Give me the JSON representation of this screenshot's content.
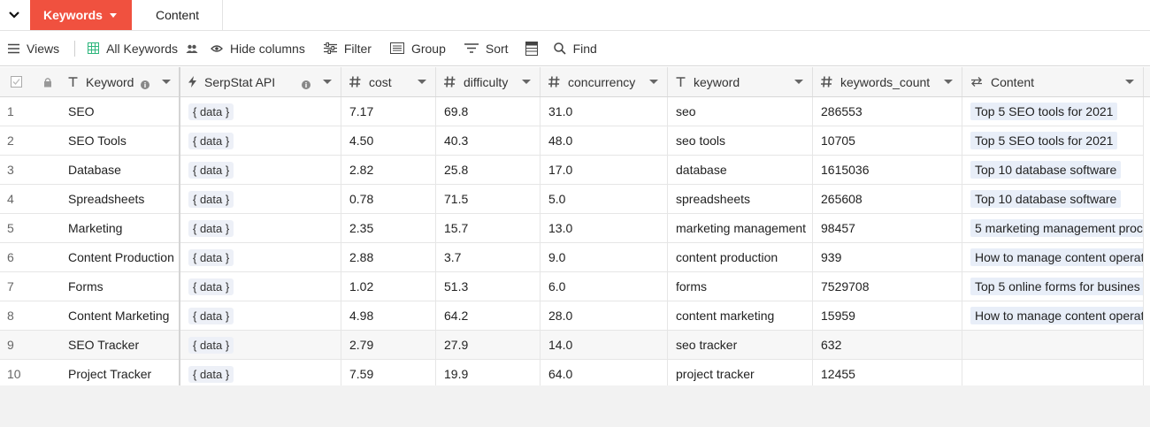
{
  "tabs": {
    "active_label": "Keywords",
    "other_label": "Content"
  },
  "toolbar": {
    "views_label": "Views",
    "view_name": "All Keywords",
    "hide_columns_label": "Hide columns",
    "filter_label": "Filter",
    "group_label": "Group",
    "sort_label": "Sort",
    "find_label": "Find"
  },
  "columns": {
    "keyword": "Keyword",
    "serpstat": "SerpStat API",
    "cost": "cost",
    "difficulty": "difficulty",
    "concurrency": "concurrency",
    "keyword_lower": "keyword",
    "keywords_count": "keywords_count",
    "content": "Content"
  },
  "rows": [
    {
      "num": "1",
      "keyword": "SEO",
      "api": "{ data }",
      "cost": "7.17",
      "difficulty": "69.8",
      "concurrency": "31.0",
      "kw": "seo",
      "count": "286553",
      "content": "Top 5 SEO tools for 2021"
    },
    {
      "num": "2",
      "keyword": "SEO Tools",
      "api": "{ data }",
      "cost": "4.50",
      "difficulty": "40.3",
      "concurrency": "48.0",
      "kw": "seo tools",
      "count": "10705",
      "content": "Top 5 SEO tools for 2021"
    },
    {
      "num": "3",
      "keyword": "Database",
      "api": "{ data }",
      "cost": "2.82",
      "difficulty": "25.8",
      "concurrency": "17.0",
      "kw": "database",
      "count": "1615036",
      "content": "Top 10 database software"
    },
    {
      "num": "4",
      "keyword": "Spreadsheets",
      "api": "{ data }",
      "cost": "0.78",
      "difficulty": "71.5",
      "concurrency": "5.0",
      "kw": "spreadsheets",
      "count": "265608",
      "content": "Top 10 database software"
    },
    {
      "num": "5",
      "keyword": "Marketing",
      "api": "{ data }",
      "cost": "2.35",
      "difficulty": "15.7",
      "concurrency": "13.0",
      "kw": "marketing management",
      "count": "98457",
      "content": "5 marketing management proc"
    },
    {
      "num": "6",
      "keyword": "Content Production",
      "api": "{ data }",
      "cost": "2.88",
      "difficulty": "3.7",
      "concurrency": "9.0",
      "kw": "content production",
      "count": "939",
      "content": "How to manage content operat"
    },
    {
      "num": "7",
      "keyword": "Forms",
      "api": "{ data }",
      "cost": "1.02",
      "difficulty": "51.3",
      "concurrency": "6.0",
      "kw": "forms",
      "count": "7529708",
      "content": "Top 5 online forms for busines"
    },
    {
      "num": "8",
      "keyword": "Content Marketing",
      "api": "{ data }",
      "cost": "4.98",
      "difficulty": "64.2",
      "concurrency": "28.0",
      "kw": "content marketing",
      "count": "15959",
      "content": "How to manage content operat"
    },
    {
      "num": "9",
      "keyword": "SEO Tracker",
      "api": "{ data }",
      "cost": "2.79",
      "difficulty": "27.9",
      "concurrency": "14.0",
      "kw": "seo tracker",
      "count": "632",
      "content": ""
    },
    {
      "num": "10",
      "keyword": "Project Tracker",
      "api": "{ data }",
      "cost": "7.59",
      "difficulty": "19.9",
      "concurrency": "64.0",
      "kw": "project tracker",
      "count": "12455",
      "content": ""
    }
  ],
  "colors": {
    "accent": "#f0513f",
    "tag_bg": "#edf0f7",
    "grid_icon": "#2eb67d"
  }
}
